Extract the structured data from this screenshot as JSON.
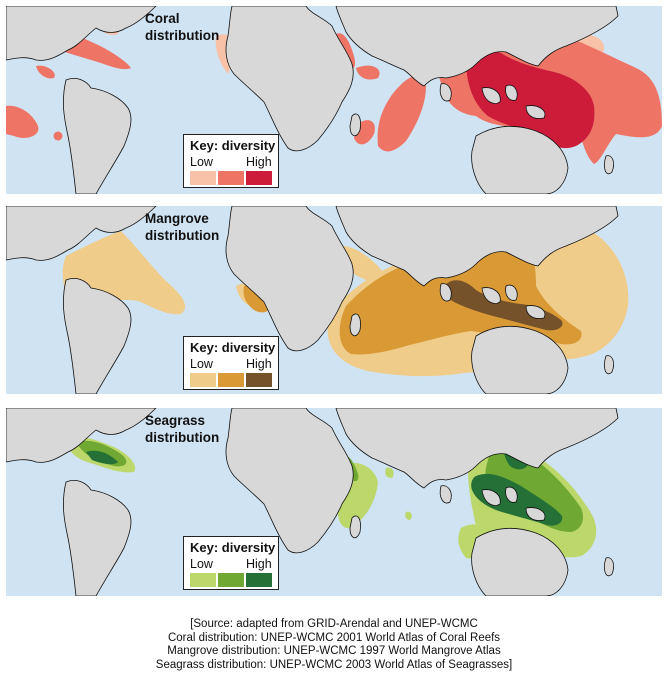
{
  "panels": [
    {
      "title": "Coral\ndistribution",
      "key_title": "Key: diversity",
      "key_low": "Low",
      "key_high": "High",
      "colors": [
        "#f8c2a8",
        "#ee7466",
        "#cc1c3a"
      ]
    },
    {
      "title": "Mangrove\ndistribution",
      "key_title": "Key: diversity",
      "key_low": "Low",
      "key_high": "High",
      "colors": [
        "#f0cc8a",
        "#d99a36",
        "#76522a"
      ]
    },
    {
      "title": "Seagrass\ndistribution",
      "key_title": "Key: diversity",
      "key_low": "Low",
      "key_high": "High",
      "colors": [
        "#bcd86a",
        "#6fa832",
        "#247036"
      ]
    }
  ],
  "map": {
    "ocean_color": "#cfe3f3",
    "land_color": "#d8d8d8"
  },
  "source": [
    "[Source: adapted from GRID-Arendal and UNEP-WCMC",
    "Coral distribution: UNEP-WCMC 2001 World Atlas of Coral Reefs",
    "Mangrove distribution: UNEP-WCMC 1997 World Mangrove Atlas",
    "Seagrass distribution: UNEP-WCMC 2003 World Atlas of Seagrasses]"
  ]
}
